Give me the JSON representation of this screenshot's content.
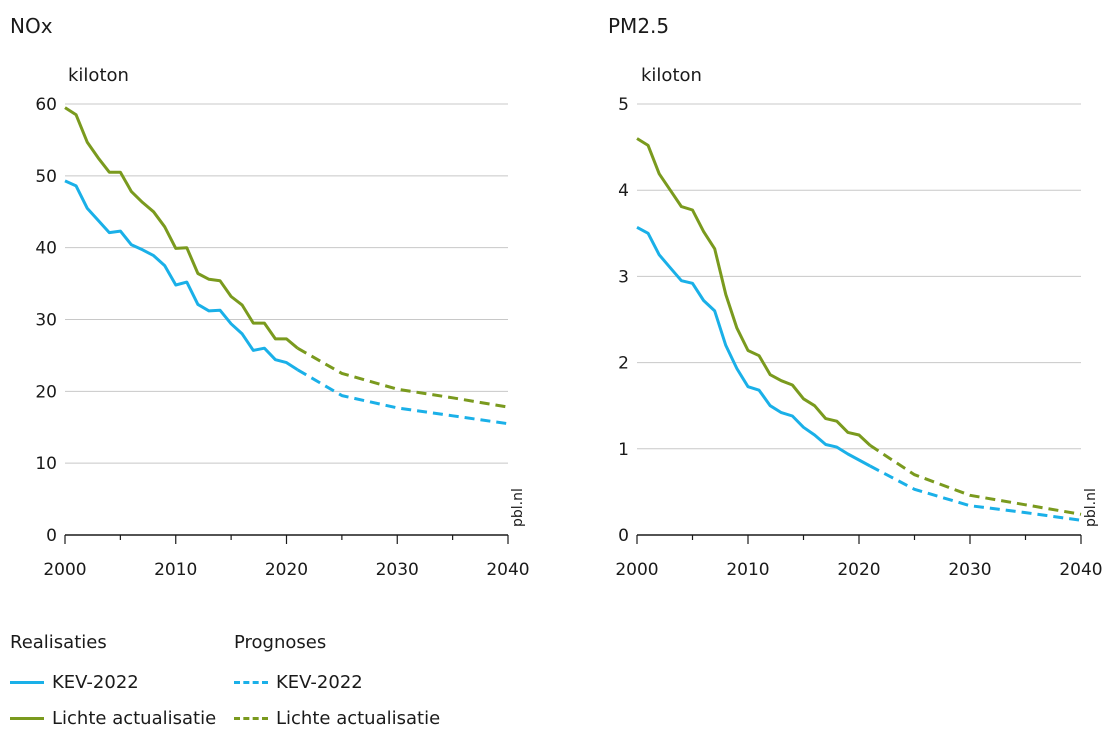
{
  "colors": {
    "kev": "#1ab0e8",
    "lichte": "#7a9a1e",
    "grid": "#c8c8c8",
    "axis": "#1a1a1a",
    "watermark": "#888888"
  },
  "watermark": "pbl.nl",
  "legend": {
    "realisaties_label": "Realisaties",
    "prognoses_label": "Prognoses",
    "real_kev": "KEV-2022",
    "real_lichte": "Lichte actualisatie",
    "prog_kev": "KEV-2022",
    "prog_lichte": "Lichte actualisatie"
  },
  "chart_data": [
    {
      "type": "line",
      "title": "NOx",
      "ylabel": "kiloton",
      "xlabel": "",
      "xlim": [
        2000,
        2040
      ],
      "ylim": [
        0,
        60
      ],
      "xticks": [
        2000,
        2010,
        2020,
        2030,
        2040
      ],
      "yticks": [
        0,
        10,
        20,
        30,
        40,
        50,
        60
      ],
      "grid": true,
      "series": [
        {
          "name": "KEV-2022",
          "kind": "Realisaties",
          "color_key": "kev",
          "dashed": false,
          "x": [
            2000,
            2001,
            2002,
            2003,
            2004,
            2005,
            2006,
            2007,
            2008,
            2009,
            2010,
            2011,
            2012,
            2013,
            2014,
            2015,
            2016,
            2017,
            2018,
            2019,
            2020,
            2021
          ],
          "y": [
            49.3,
            48.6,
            45.5,
            43.8,
            42.1,
            42.3,
            40.4,
            39.7,
            38.9,
            37.5,
            34.8,
            35.2,
            32.1,
            31.2,
            31.3,
            29.4,
            28.0,
            25.7,
            26.0,
            24.4,
            24.0,
            23.0
          ]
        },
        {
          "name": "Lichte actualisatie",
          "kind": "Realisaties",
          "color_key": "lichte",
          "dashed": false,
          "x": [
            2000,
            2001,
            2002,
            2003,
            2004,
            2005,
            2006,
            2007,
            2008,
            2009,
            2010,
            2011,
            2012,
            2013,
            2014,
            2015,
            2016,
            2017,
            2018,
            2019,
            2020,
            2021
          ],
          "y": [
            59.5,
            58.5,
            54.7,
            52.5,
            50.5,
            50.5,
            47.8,
            46.3,
            45.0,
            42.9,
            39.9,
            40.0,
            36.4,
            35.6,
            35.4,
            33.2,
            32.0,
            29.5,
            29.5,
            27.3,
            27.3,
            26.0
          ]
        },
        {
          "name": "KEV-2022",
          "kind": "Prognoses",
          "color_key": "kev",
          "dashed": true,
          "x": [
            2021,
            2025,
            2030,
            2035,
            2040
          ],
          "y": [
            23.0,
            19.4,
            17.7,
            16.6,
            15.5
          ]
        },
        {
          "name": "Lichte actualisatie",
          "kind": "Prognoses",
          "color_key": "lichte",
          "dashed": true,
          "x": [
            2021,
            2025,
            2030,
            2035,
            2040
          ],
          "y": [
            26.0,
            22.5,
            20.3,
            19.1,
            17.8
          ]
        }
      ]
    },
    {
      "type": "line",
      "title": "PM2.5",
      "ylabel": "kiloton",
      "xlabel": "",
      "xlim": [
        2000,
        2040
      ],
      "ylim": [
        0,
        5
      ],
      "xticks": [
        2000,
        2010,
        2020,
        2030,
        2040
      ],
      "yticks": [
        0,
        1,
        2,
        3,
        4,
        5
      ],
      "grid": true,
      "series": [
        {
          "name": "KEV-2022",
          "kind": "Realisaties",
          "color_key": "kev",
          "dashed": false,
          "x": [
            2000,
            2001,
            2002,
            2003,
            2004,
            2005,
            2006,
            2007,
            2008,
            2009,
            2010,
            2011,
            2012,
            2013,
            2014,
            2015,
            2016,
            2017,
            2018,
            2019,
            2020,
            2021
          ],
          "y": [
            3.57,
            3.5,
            3.25,
            3.1,
            2.95,
            2.92,
            2.72,
            2.6,
            2.2,
            1.93,
            1.72,
            1.68,
            1.5,
            1.42,
            1.38,
            1.25,
            1.16,
            1.05,
            1.02,
            0.94,
            0.87,
            0.8
          ]
        },
        {
          "name": "Lichte actualisatie",
          "kind": "Realisaties",
          "color_key": "lichte",
          "dashed": false,
          "x": [
            2000,
            2001,
            2002,
            2003,
            2004,
            2005,
            2006,
            2007,
            2008,
            2009,
            2010,
            2011,
            2012,
            2013,
            2014,
            2015,
            2016,
            2017,
            2018,
            2019,
            2020,
            2021
          ],
          "y": [
            4.6,
            4.52,
            4.19,
            4.0,
            3.81,
            3.77,
            3.52,
            3.32,
            2.79,
            2.4,
            2.14,
            2.08,
            1.86,
            1.79,
            1.74,
            1.58,
            1.5,
            1.35,
            1.32,
            1.19,
            1.16,
            1.04
          ]
        },
        {
          "name": "KEV-2022",
          "kind": "Prognoses",
          "color_key": "kev",
          "dashed": true,
          "x": [
            2021,
            2025,
            2030,
            2035,
            2040
          ],
          "y": [
            0.8,
            0.53,
            0.34,
            0.26,
            0.17
          ]
        },
        {
          "name": "Lichte actualisatie",
          "kind": "Prognoses",
          "color_key": "lichte",
          "dashed": true,
          "x": [
            2021,
            2025,
            2030,
            2035,
            2040
          ],
          "y": [
            1.04,
            0.7,
            0.46,
            0.35,
            0.24
          ]
        }
      ]
    }
  ]
}
